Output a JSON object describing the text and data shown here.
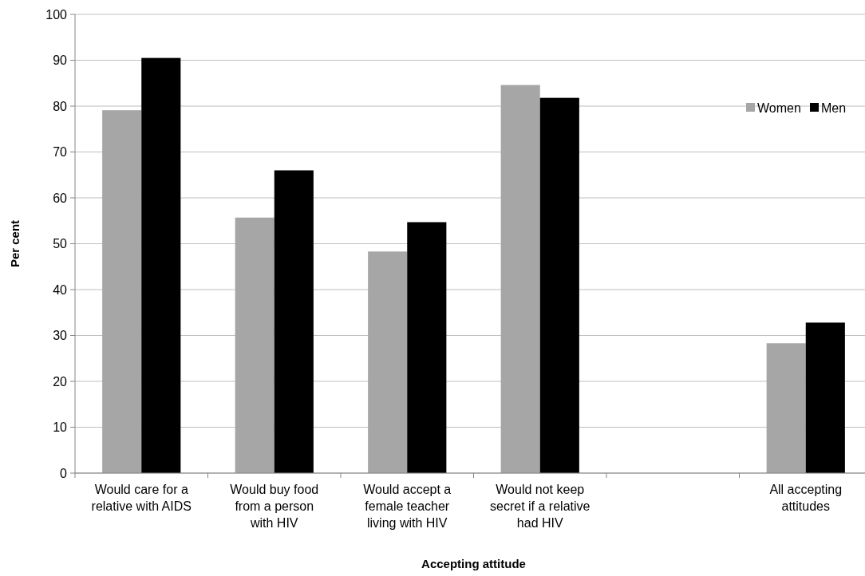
{
  "chart_data": {
    "type": "bar",
    "xlabel": "Accepting attitude",
    "ylabel": "Per cent",
    "categories": [
      "Would care for a\nrelative with AIDS",
      "Would buy food\nfrom a person\nwith HIV",
      "Would accept a\nfemale teacher\nliving with HIV",
      "Would not keep\nsecret if a relative\nhad HIV",
      null,
      "All accepting\nattitudes"
    ],
    "series": [
      {
        "name": "Women",
        "color": "#a6a6a6",
        "values": [
          79.1,
          55.7,
          48.3,
          84.6,
          null,
          28.3
        ]
      },
      {
        "name": "Men",
        "color": "#000000",
        "values": [
          90.5,
          66.0,
          54.7,
          81.8,
          null,
          32.8
        ]
      }
    ],
    "ylim": [
      0,
      100
    ],
    "yticks": [
      0,
      10,
      20,
      30,
      40,
      50,
      60,
      70,
      80,
      90,
      100
    ],
    "grid": "y",
    "legend": "top right"
  }
}
